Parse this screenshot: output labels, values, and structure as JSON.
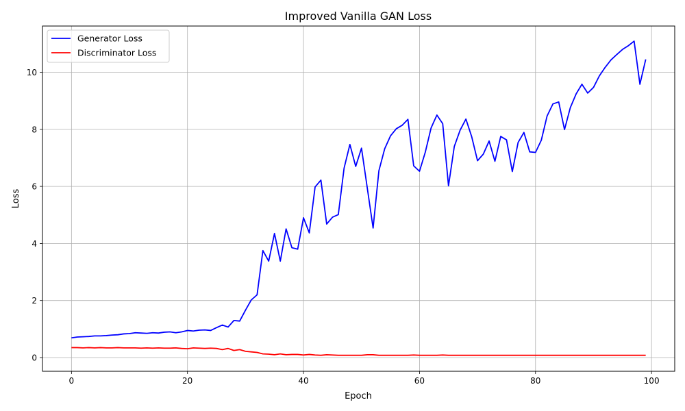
{
  "chart_data": {
    "type": "line",
    "title": "Improved Vanilla GAN Loss",
    "xlabel": "Epoch",
    "ylabel": "Loss",
    "xlim": [
      -5,
      104
    ],
    "ylim": [
      -0.48,
      11.62
    ],
    "xticks": [
      0,
      20,
      40,
      60,
      80,
      100
    ],
    "yticks": [
      0,
      2,
      4,
      6,
      8,
      10
    ],
    "grid": true,
    "legend_position": "top-left",
    "x": [
      0,
      1,
      2,
      3,
      4,
      5,
      6,
      7,
      8,
      9,
      10,
      11,
      12,
      13,
      14,
      15,
      16,
      17,
      18,
      19,
      20,
      21,
      22,
      23,
      24,
      25,
      26,
      27,
      28,
      29,
      30,
      31,
      32,
      33,
      34,
      35,
      36,
      37,
      38,
      39,
      40,
      41,
      42,
      43,
      44,
      45,
      46,
      47,
      48,
      49,
      50,
      51,
      52,
      53,
      54,
      55,
      56,
      57,
      58,
      59,
      60,
      61,
      62,
      63,
      64,
      65,
      66,
      67,
      68,
      69,
      70,
      71,
      72,
      73,
      74,
      75,
      76,
      77,
      78,
      79,
      80,
      81,
      82,
      83,
      84,
      85,
      86,
      87,
      88,
      89,
      90,
      91,
      92,
      93,
      94,
      95,
      96,
      97,
      98,
      99
    ],
    "series": [
      {
        "name": "Generator Loss",
        "color": "#0000ff",
        "values": [
          0.69,
          0.72,
          0.73,
          0.74,
          0.76,
          0.76,
          0.77,
          0.79,
          0.8,
          0.83,
          0.84,
          0.87,
          0.86,
          0.85,
          0.87,
          0.86,
          0.89,
          0.9,
          0.87,
          0.9,
          0.95,
          0.93,
          0.96,
          0.97,
          0.95,
          1.05,
          1.14,
          1.07,
          1.3,
          1.28,
          1.66,
          2.02,
          2.2,
          3.75,
          3.38,
          4.35,
          3.38,
          4.51,
          3.85,
          3.8,
          4.9,
          4.37,
          5.98,
          6.22,
          4.68,
          4.92,
          5.01,
          6.64,
          7.47,
          6.7,
          7.34,
          5.94,
          4.54,
          6.55,
          7.32,
          7.77,
          8.02,
          8.14,
          8.35,
          6.72,
          6.53,
          7.2,
          8.05,
          8.5,
          8.2,
          6.02,
          7.4,
          7.97,
          8.36,
          7.74,
          6.9,
          7.13,
          7.59,
          6.88,
          7.75,
          7.63,
          6.52,
          7.54,
          7.89,
          7.21,
          7.19,
          7.62,
          8.47,
          8.89,
          8.96,
          7.99,
          8.76,
          9.24,
          9.58,
          9.27,
          9.47,
          9.87,
          10.17,
          10.43,
          10.62,
          10.8,
          10.93,
          11.09,
          9.58,
          10.45
        ]
      },
      {
        "name": "Discriminator Loss",
        "color": "#ff0000",
        "values": [
          0.35,
          0.35,
          0.34,
          0.35,
          0.34,
          0.35,
          0.34,
          0.34,
          0.35,
          0.34,
          0.34,
          0.34,
          0.33,
          0.34,
          0.33,
          0.34,
          0.33,
          0.33,
          0.34,
          0.32,
          0.31,
          0.34,
          0.33,
          0.32,
          0.33,
          0.32,
          0.28,
          0.32,
          0.25,
          0.28,
          0.22,
          0.2,
          0.18,
          0.13,
          0.12,
          0.1,
          0.13,
          0.1,
          0.11,
          0.11,
          0.09,
          0.11,
          0.09,
          0.08,
          0.1,
          0.09,
          0.08,
          0.08,
          0.08,
          0.08,
          0.08,
          0.1,
          0.1,
          0.08,
          0.08,
          0.08,
          0.08,
          0.08,
          0.08,
          0.09,
          0.08,
          0.08,
          0.08,
          0.08,
          0.09,
          0.08,
          0.08,
          0.08,
          0.08,
          0.08,
          0.08,
          0.08,
          0.08,
          0.08,
          0.08,
          0.08,
          0.08,
          0.08,
          0.08,
          0.08,
          0.08,
          0.08,
          0.08,
          0.08,
          0.08,
          0.08,
          0.08,
          0.08,
          0.08,
          0.08,
          0.08,
          0.08,
          0.08,
          0.08,
          0.08,
          0.08,
          0.08,
          0.08,
          0.08,
          0.08
        ]
      }
    ]
  }
}
